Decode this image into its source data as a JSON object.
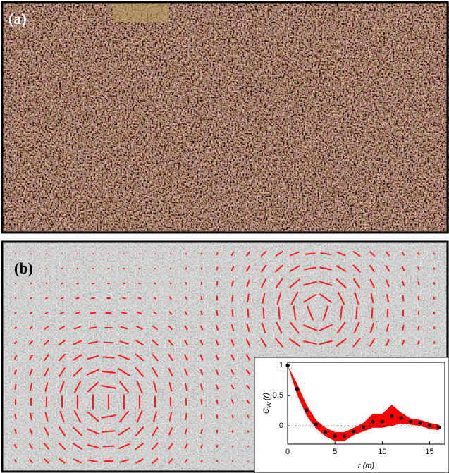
{
  "panels": [
    {
      "label": "(a)"
    },
    {
      "label": "(b)"
    }
  ],
  "chart_data": {
    "type": "band-scatter",
    "x_label": "r (m)",
    "y_label": {
      "main": "C",
      "sub": "vv",
      "arg": "(r)"
    },
    "x": [
      0,
      1,
      2,
      3,
      4,
      5,
      6,
      7,
      8,
      9,
      10,
      11,
      12,
      13,
      14,
      15,
      16
    ],
    "series": [
      {
        "color": "#000000",
        "values": [
          1,
          0.61,
          0.26,
          0.03,
          -0.1,
          -0.17,
          -0.17,
          -0.09,
          -0.02,
          0.07,
          0.07,
          0.16,
          0.13,
          0.07,
          0.05,
          0.01,
          -0.02
        ]
      }
    ],
    "band": {
      "color": "#ff0000",
      "upper": [
        1,
        0.7,
        0.35,
        0.1,
        -0.03,
        -0.1,
        -0.1,
        -0.03,
        0.05,
        0.2,
        0.2,
        0.35,
        0.22,
        0.12,
        0.1,
        0.05,
        0.02
      ],
      "lower": [
        1,
        0.52,
        0.17,
        -0.04,
        -0.17,
        -0.25,
        -0.25,
        -0.15,
        -0.09,
        -0.03,
        -0.03,
        0,
        0.04,
        0.02,
        0,
        -0.05,
        -0.07
      ]
    },
    "reference_line": 0,
    "xlim": [
      0,
      16.6
    ],
    "ylim": [
      -0.3,
      1.05
    ],
    "xticks": [
      0,
      5,
      10,
      15
    ],
    "yticks": [
      0,
      0.5,
      1
    ]
  }
}
